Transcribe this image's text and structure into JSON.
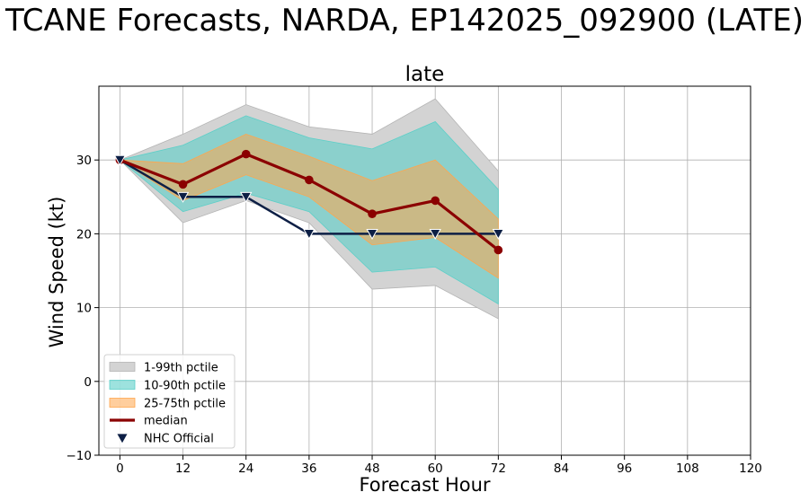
{
  "chart_data": {
    "type": "line",
    "suptitle": "TCANE Forecasts, NARDA, EP142025_092900 (LATE)",
    "title": "late",
    "xlabel": "Forecast Hour",
    "ylabel": "Wind Speed (kt)",
    "xlim": [
      -4,
      120
    ],
    "ylim": [
      -10,
      40
    ],
    "xticks": [
      0,
      12,
      24,
      36,
      48,
      60,
      72,
      84,
      96,
      108,
      120
    ],
    "yticks": [
      -10,
      0,
      10,
      20,
      30
    ],
    "xtick_labels": [
      "0",
      "12",
      "24",
      "36",
      "48",
      "60",
      "72",
      "84",
      "96",
      "108",
      "120"
    ],
    "ytick_labels": [
      "−10",
      "0",
      "10",
      "20",
      "30"
    ],
    "grid": true,
    "legend_position": "lower-left",
    "x": [
      0,
      12,
      24,
      36,
      48,
      60,
      72
    ],
    "bands": [
      {
        "name": "1-99th pctile",
        "color": "#d3d3d3",
        "edge": "#b4b4b4",
        "opacity": 1.0,
        "lower": [
          30,
          21.5,
          24.5,
          21.5,
          12.5,
          13,
          8.5
        ],
        "upper": [
          30,
          33.5,
          37.5,
          34.5,
          33.5,
          38.3,
          28.5
        ]
      },
      {
        "name": "10-90th pctile",
        "color": "#5ccfc8",
        "edge": "#5ccfc8",
        "opacity": 0.6,
        "lower": [
          30,
          23,
          25.5,
          23,
          14.8,
          15.5,
          10.5
        ],
        "upper": [
          30,
          32,
          36,
          33,
          31.5,
          35.2,
          26
        ]
      },
      {
        "name": "25-75th pctile",
        "color": "#ffa64d",
        "edge": "#ffa64d",
        "opacity": 0.55,
        "lower": [
          30,
          24.5,
          28,
          25,
          18.5,
          19.5,
          14
        ],
        "upper": [
          30,
          29.5,
          33.5,
          30.5,
          27.2,
          30,
          22
        ]
      }
    ],
    "series": [
      {
        "name": "median",
        "color": "#8b0000",
        "marker": "circle",
        "values": [
          30,
          26.7,
          30.8,
          27.3,
          22.7,
          24.5,
          17.8
        ]
      },
      {
        "name": "NHC Official",
        "color": "#0d1f45",
        "marker": "triangle-down",
        "values": [
          30,
          25,
          25,
          20,
          20,
          20,
          20
        ]
      }
    ],
    "legend": [
      "1-99th pctile",
      "10-90th pctile",
      "25-75th pctile",
      "median",
      "NHC Official"
    ]
  }
}
